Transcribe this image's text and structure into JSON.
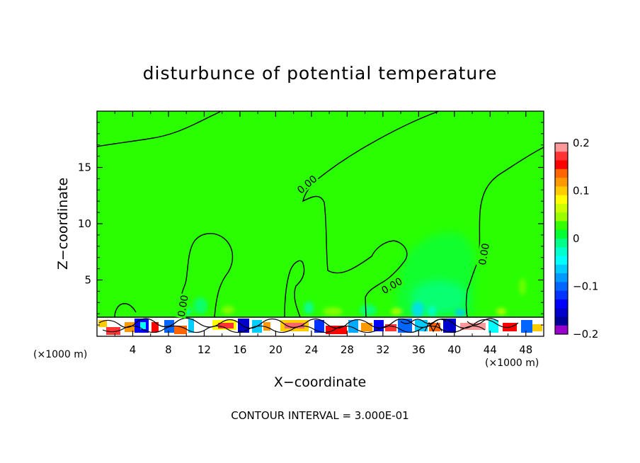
{
  "chart_data": {
    "type": "heatmap",
    "title": "disturbunce of potential temperature",
    "xlabel": "X−coordinate",
    "ylabel": "Z−coordinate",
    "x_unit_label": "(×1000 m)",
    "z_unit_label": "(×1000 m)",
    "xlim": [
      0,
      50
    ],
    "ylim": [
      0,
      20
    ],
    "x_ticks": [
      4,
      8,
      12,
      16,
      20,
      24,
      28,
      32,
      36,
      40,
      44,
      48
    ],
    "x_tick_labels": [
      "4",
      "8",
      "12",
      "16",
      "20",
      "24",
      "28",
      "32",
      "36",
      "40",
      "44",
      "48"
    ],
    "y_ticks": [
      5,
      10,
      15
    ],
    "y_tick_labels": [
      "5",
      "10",
      "15"
    ],
    "colorbar": {
      "range": [
        -0.2,
        0.2
      ],
      "ticks": [
        0.2,
        0.1,
        0,
        -0.1,
        -0.2
      ],
      "tick_labels": [
        "0.2",
        "0.1",
        "0",
        "−0.1",
        "−0.2"
      ],
      "colors": [
        "#ff9999",
        "#ff3333",
        "#ff0000",
        "#ff6600",
        "#ff9900",
        "#ffcc00",
        "#ffff00",
        "#ccff00",
        "#99ff00",
        "#33ff00",
        "#00ff33",
        "#00ff88",
        "#00ffcc",
        "#00ffff",
        "#00ccff",
        "#0099ff",
        "#0066ff",
        "#0033ff",
        "#0000ff",
        "#0000cc",
        "#000099",
        "#9900cc"
      ]
    },
    "contour_labels": [
      {
        "text": "0.00",
        "x": 23.5,
        "z": 13.5,
        "rotate": -40
      },
      {
        "text": "0.00",
        "x": 9.6,
        "z": 2.7,
        "rotate": -80
      },
      {
        "text": "0.00",
        "x": 33.0,
        "z": 4.5,
        "rotate": -30
      },
      {
        "text": "0.00",
        "x": 43.3,
        "z": 7.3,
        "rotate": -80
      }
    ],
    "contour_interval_note": "CONTOUR INTERVAL = 3.000E-01"
  }
}
